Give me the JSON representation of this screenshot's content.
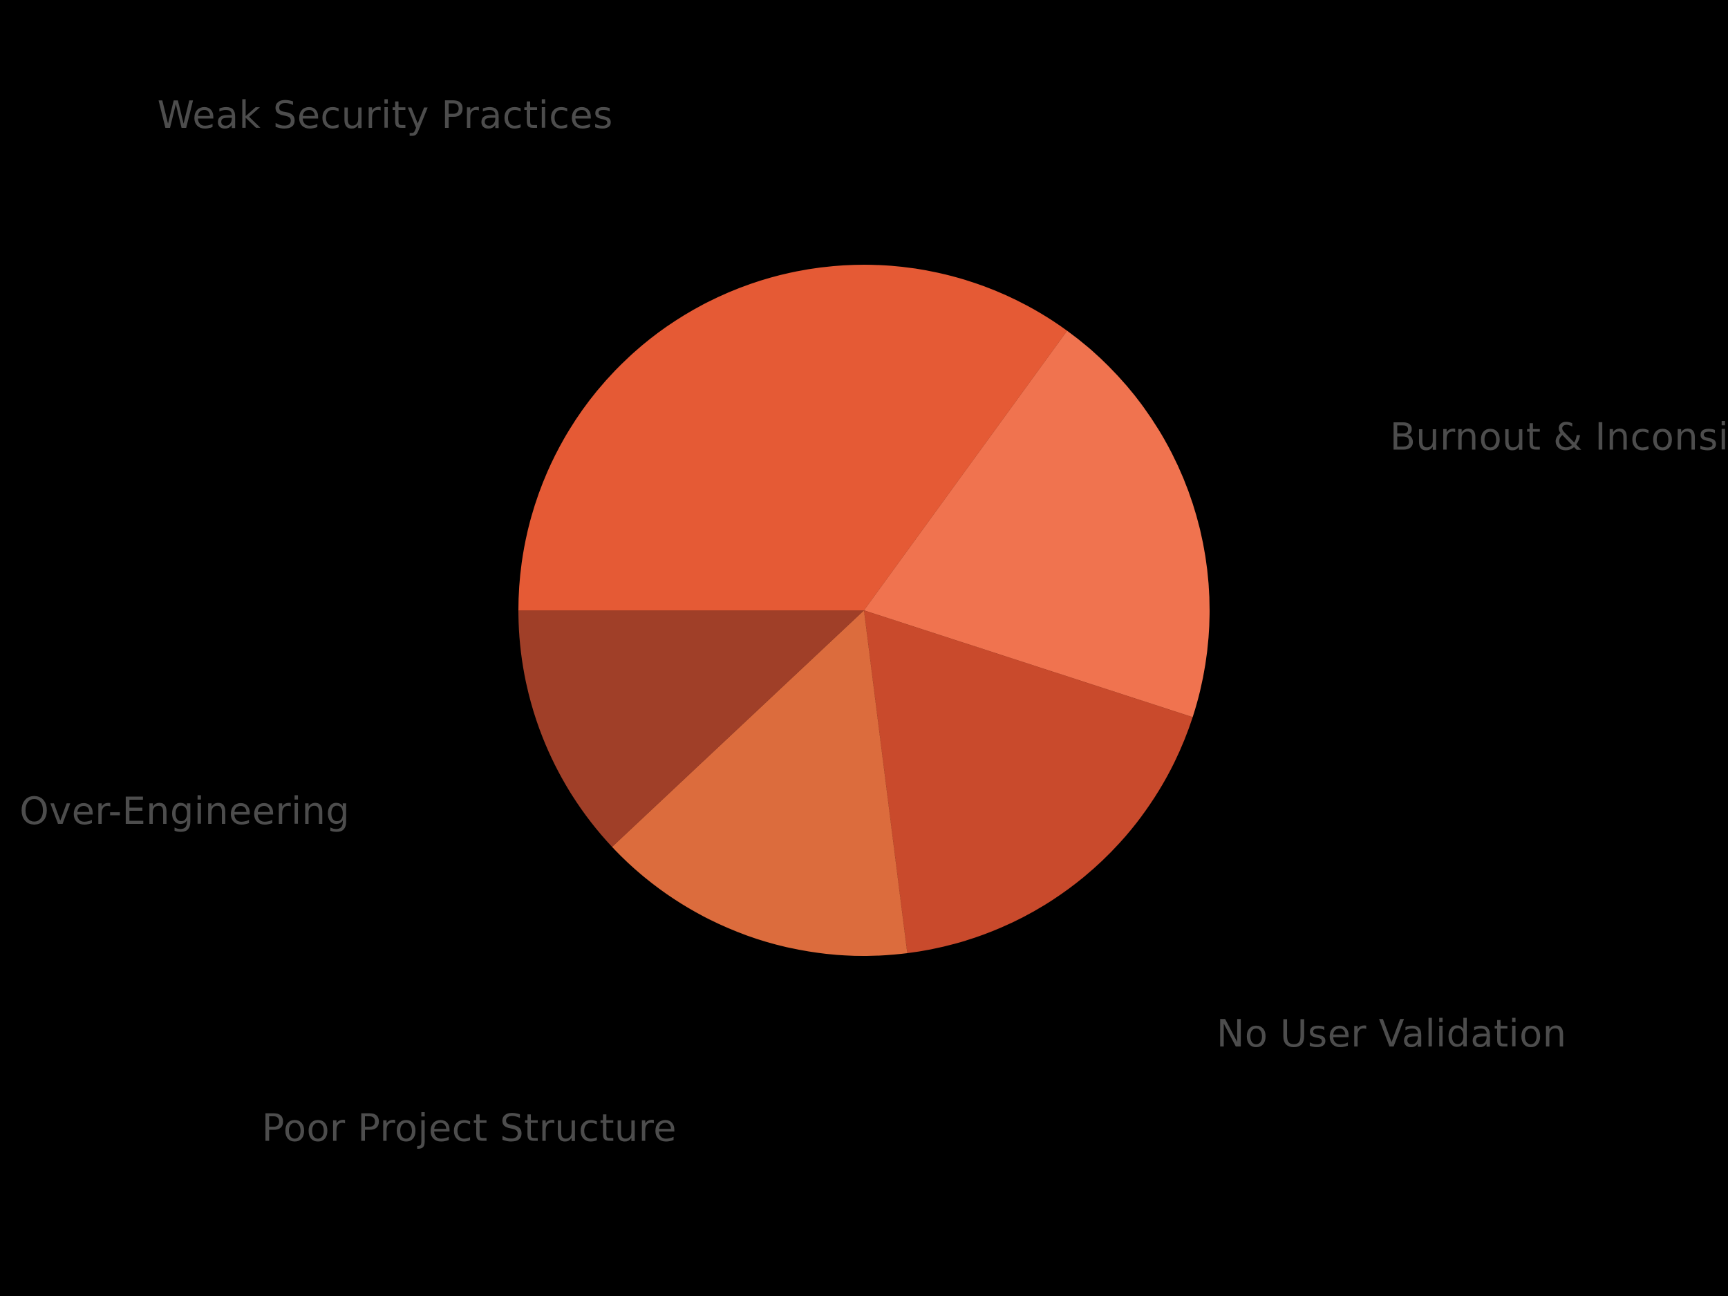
{
  "chart_data": {
    "type": "pie",
    "start_angle_deg": 180,
    "direction": "clockwise",
    "slices": [
      {
        "label": "Weak Security Practices",
        "value": 35,
        "color": "#E55A35"
      },
      {
        "label": "Burnout & Inconsistency",
        "value": 20,
        "color": "#F0734F"
      },
      {
        "label": "No User Validation",
        "value": 18,
        "color": "#C94A2C"
      },
      {
        "label": "Poor Project Structure",
        "value": 15,
        "color": "#DC6C3D"
      },
      {
        "label": "Over-Engineering",
        "value": 12,
        "color": "#A03F28"
      }
    ],
    "legend": "none",
    "background": "#000000"
  }
}
